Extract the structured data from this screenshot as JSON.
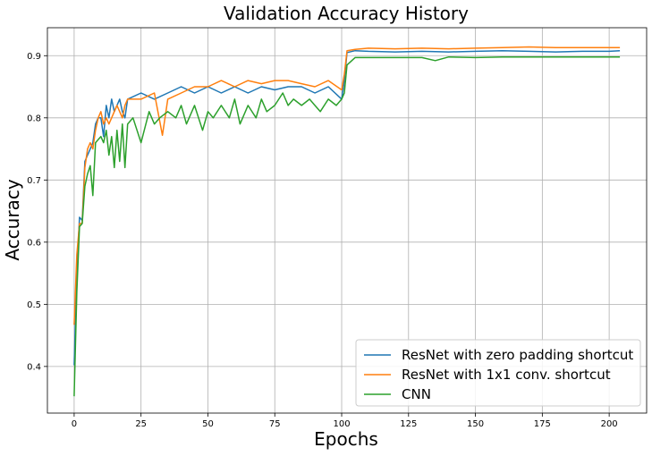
{
  "chart_data": {
    "type": "line",
    "title": "Validation Accuracy History",
    "xlabel": "Epochs",
    "ylabel": "Accuracy",
    "xlim": [
      -10,
      214
    ],
    "ylim": [
      0.325,
      0.945
    ],
    "xticks": [
      0,
      25,
      50,
      75,
      100,
      125,
      150,
      175,
      200
    ],
    "yticks": [
      0.4,
      0.5,
      0.6,
      0.7,
      0.8,
      0.9
    ],
    "grid": true,
    "legend_position": "lower right",
    "series": [
      {
        "name": "ResNet with zero padding shortcut",
        "color": "#1f77b4",
        "x": [
          0,
          1,
          2,
          3,
          4,
          5,
          6,
          7,
          8,
          9,
          10,
          11,
          12,
          13,
          14,
          15,
          16,
          17,
          18,
          19,
          20,
          25,
          30,
          35,
          40,
          45,
          50,
          55,
          60,
          65,
          70,
          75,
          80,
          85,
          90,
          95,
          100,
          101,
          102,
          105,
          110,
          120,
          130,
          140,
          150,
          160,
          170,
          180,
          190,
          200,
          204
        ],
        "y": [
          0.402,
          0.55,
          0.64,
          0.635,
          0.73,
          0.74,
          0.75,
          0.76,
          0.79,
          0.8,
          0.8,
          0.77,
          0.82,
          0.8,
          0.83,
          0.81,
          0.82,
          0.83,
          0.81,
          0.8,
          0.83,
          0.84,
          0.83,
          0.84,
          0.85,
          0.84,
          0.85,
          0.84,
          0.85,
          0.84,
          0.85,
          0.845,
          0.85,
          0.85,
          0.84,
          0.85,
          0.83,
          0.86,
          0.905,
          0.908,
          0.907,
          0.906,
          0.907,
          0.906,
          0.907,
          0.908,
          0.907,
          0.906,
          0.907,
          0.907,
          0.908
        ]
      },
      {
        "name": "ResNet with 1x1 conv. shortcut",
        "color": "#ff7f0e",
        "x": [
          0,
          1,
          2,
          3,
          4,
          5,
          6,
          7,
          8,
          9,
          10,
          11,
          12,
          13,
          14,
          15,
          16,
          17,
          18,
          19,
          20,
          25,
          30,
          33,
          35,
          40,
          45,
          50,
          55,
          60,
          65,
          70,
          75,
          80,
          85,
          90,
          95,
          100,
          101,
          102,
          105,
          110,
          120,
          130,
          140,
          150,
          160,
          170,
          180,
          190,
          200,
          204
        ],
        "y": [
          0.467,
          0.58,
          0.63,
          0.63,
          0.72,
          0.75,
          0.76,
          0.75,
          0.78,
          0.8,
          0.81,
          0.79,
          0.8,
          0.79,
          0.8,
          0.81,
          0.82,
          0.81,
          0.8,
          0.82,
          0.83,
          0.83,
          0.84,
          0.772,
          0.83,
          0.84,
          0.85,
          0.85,
          0.86,
          0.85,
          0.86,
          0.855,
          0.86,
          0.86,
          0.855,
          0.85,
          0.86,
          0.845,
          0.87,
          0.908,
          0.91,
          0.912,
          0.911,
          0.912,
          0.911,
          0.912,
          0.913,
          0.914,
          0.913,
          0.913,
          0.913,
          0.913
        ]
      },
      {
        "name": "CNN",
        "color": "#2ca02c",
        "x": [
          0,
          1,
          2,
          3,
          4,
          5,
          6,
          7,
          8,
          9,
          10,
          11,
          12,
          13,
          14,
          15,
          16,
          17,
          18,
          19,
          20,
          22,
          25,
          28,
          30,
          32,
          35,
          38,
          40,
          42,
          45,
          48,
          50,
          52,
          55,
          58,
          60,
          62,
          65,
          68,
          70,
          72,
          75,
          78,
          80,
          82,
          85,
          88,
          90,
          92,
          95,
          98,
          100,
          101,
          102,
          105,
          110,
          120,
          130,
          135,
          140,
          150,
          160,
          170,
          180,
          190,
          200,
          204
        ],
        "y": [
          0.352,
          0.52,
          0.625,
          0.63,
          0.69,
          0.71,
          0.723,
          0.675,
          0.76,
          0.765,
          0.77,
          0.76,
          0.78,
          0.74,
          0.77,
          0.72,
          0.78,
          0.73,
          0.79,
          0.72,
          0.79,
          0.8,
          0.76,
          0.81,
          0.79,
          0.8,
          0.81,
          0.8,
          0.82,
          0.79,
          0.82,
          0.78,
          0.81,
          0.8,
          0.82,
          0.8,
          0.83,
          0.79,
          0.82,
          0.8,
          0.83,
          0.81,
          0.82,
          0.84,
          0.82,
          0.83,
          0.82,
          0.83,
          0.82,
          0.81,
          0.83,
          0.82,
          0.83,
          0.84,
          0.885,
          0.897,
          0.897,
          0.897,
          0.897,
          0.892,
          0.898,
          0.897,
          0.898,
          0.898,
          0.898,
          0.898,
          0.898,
          0.898
        ]
      }
    ]
  }
}
